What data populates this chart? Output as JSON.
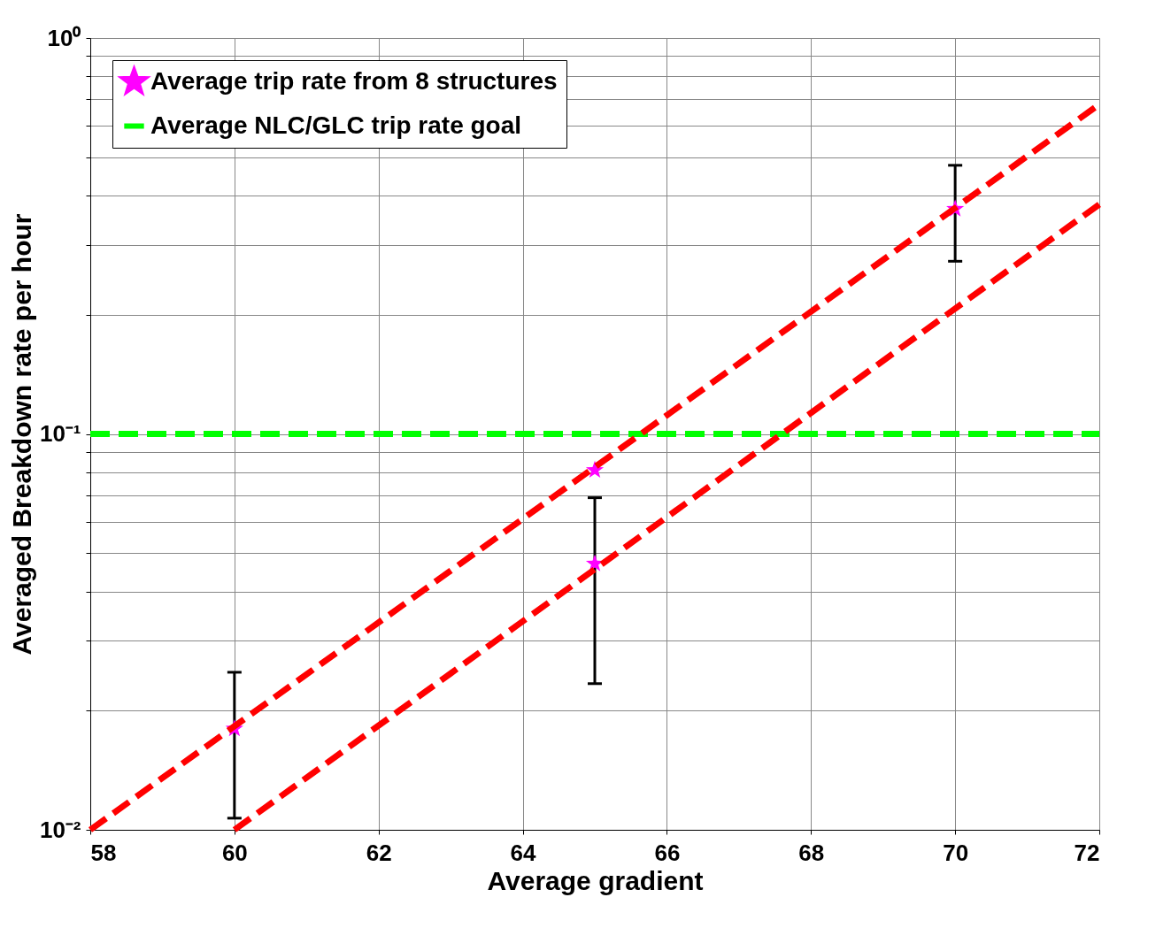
{
  "chart_data": {
    "type": "scatter",
    "xlabel": "Average gradient",
    "ylabel": "Averaged Breakdown rate per hour",
    "xlim": [
      58,
      72
    ],
    "xticks": [
      58,
      60,
      62,
      64,
      66,
      68,
      70,
      72
    ],
    "ylim": [
      0.01,
      1
    ],
    "log": true,
    "yticks": [
      {
        "value": 0.01,
        "label": "10⁻²"
      },
      {
        "value": 0.02,
        "label": null
      },
      {
        "value": 0.03,
        "label": null
      },
      {
        "value": 0.04,
        "label": null
      },
      {
        "value": 0.05,
        "label": null
      },
      {
        "value": 0.06,
        "label": null
      },
      {
        "value": 0.07,
        "label": null
      },
      {
        "value": 0.08,
        "label": null
      },
      {
        "value": 0.09,
        "label": null
      },
      {
        "value": 0.1,
        "label": "10⁻¹"
      },
      {
        "value": 0.2,
        "label": null
      },
      {
        "value": 0.3,
        "label": null
      },
      {
        "value": 0.4,
        "label": null
      },
      {
        "value": 0.5,
        "label": null
      },
      {
        "value": 0.6,
        "label": null
      },
      {
        "value": 0.7,
        "label": null
      },
      {
        "value": 0.8,
        "label": null
      },
      {
        "value": 0.9,
        "label": null
      },
      {
        "value": 1,
        "label": "10⁰"
      }
    ],
    "grid": true,
    "legend": "top left",
    "series": [
      {
        "name": "Average trip rate from 8 structures",
        "marker": "star",
        "color": "#ff00ff",
        "x": [
          60,
          65,
          65,
          70
        ],
        "values": [
          0.018,
          0.081,
          0.047,
          0.37
        ],
        "errors": [
          [
            0.0107,
            0.025
          ],
          null,
          [
            0.0234,
            0.069
          ],
          [
            0.273,
            0.477
          ]
        ]
      },
      {
        "name": "Average NLC/GLC trip rate goal",
        "type": "line",
        "line_style": "dashed",
        "color": "#00ff00",
        "x": [
          58,
          72
        ],
        "values": [
          0.1,
          0.1
        ]
      },
      {
        "type": "line",
        "line_style": "dashed",
        "color": "#ff0000",
        "x": [
          58,
          72
        ],
        "values": [
          0.01,
          0.68
        ]
      },
      {
        "type": "line",
        "line_style": "dashed",
        "color": "#ff0000",
        "x": [
          60,
          72
        ],
        "values": [
          0.01,
          0.38
        ]
      }
    ]
  }
}
